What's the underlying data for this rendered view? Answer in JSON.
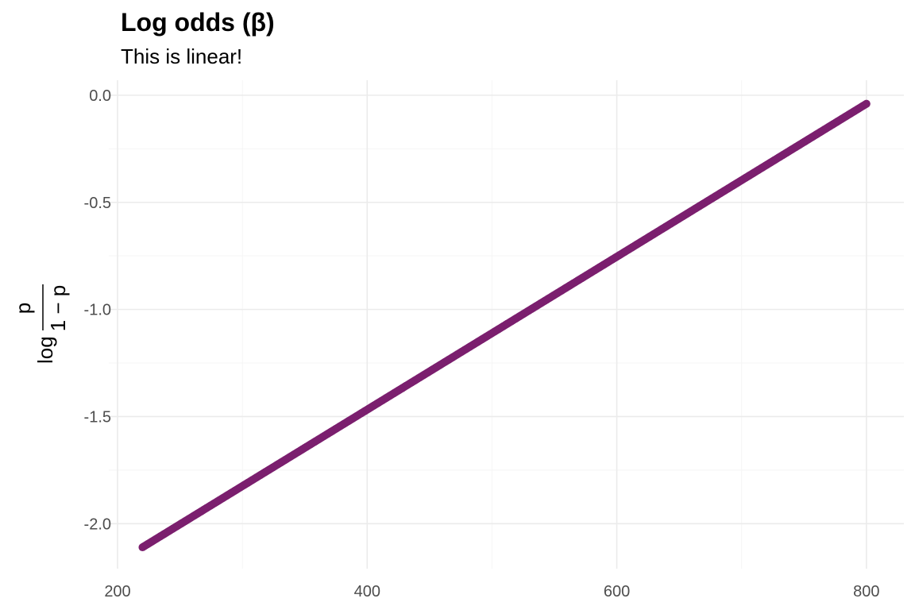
{
  "chart_data": {
    "type": "scatter",
    "title": "Log odds (β)",
    "subtitle": "This is linear!",
    "xlabel": "",
    "ylabel": {
      "prefix": "log",
      "numerator": "p",
      "denominator": "1 − p"
    },
    "xlim": [
      193,
      830
    ],
    "ylim": [
      -2.21,
      0.07
    ],
    "x_ticks": [
      200,
      400,
      600,
      800
    ],
    "x_tick_labels": [
      "200",
      "400",
      "600",
      "800"
    ],
    "y_ticks": [
      0,
      -0.5,
      -1,
      -1.5,
      -2
    ],
    "y_tick_labels": [
      "0.0",
      "-0.5",
      "-1.0",
      "-1.5",
      "-2.0"
    ],
    "grid": true,
    "series": [
      {
        "color": "#7b1f6e",
        "x_range": [
          220,
          800
        ],
        "y_range": [
          -2.11,
          -0.04
        ]
      }
    ]
  },
  "colors": {
    "grid_major": "#ebebeb",
    "grid_minor": "#f5f5f5",
    "axis_text": "#4d4d4d",
    "point": "#7b1f6e"
  }
}
